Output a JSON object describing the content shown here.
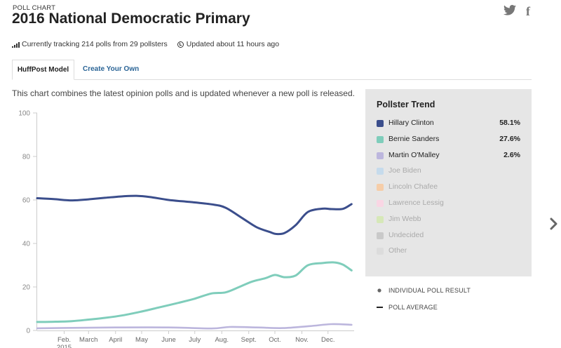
{
  "header": {
    "eyebrow": "POLL CHART",
    "title": "2016 National Democratic Primary",
    "social": [
      {
        "icon": "twitter-icon",
        "glyph": "🐦"
      },
      {
        "icon": "facebook-icon",
        "glyph": "f"
      }
    ]
  },
  "meta": {
    "tracking": "Currently tracking 214 polls from 29 pollsters",
    "updated": "Updated about 11 hours ago"
  },
  "tabs": [
    {
      "label": "HuffPost Model",
      "active": true
    },
    {
      "label": "Create Your Own",
      "active": false
    }
  ],
  "description": "This chart combines the latest opinion polls and is updated whenever a new poll is released.",
  "panel": {
    "title": "Pollster Trend",
    "rows": [
      {
        "name": "Hillary Clinton",
        "value": "58.1%",
        "color": "#3b4e8c",
        "active": true
      },
      {
        "name": "Bernie Sanders",
        "value": "27.6%",
        "color": "#7fcdbb",
        "active": true
      },
      {
        "name": "Martin O'Malley",
        "value": "2.6%",
        "color": "#bcb6dd",
        "active": true
      },
      {
        "name": "Joe Biden",
        "value": "",
        "color": "#c6dbec",
        "active": false
      },
      {
        "name": "Lincoln Chafee",
        "value": "",
        "color": "#f6cda8",
        "active": false
      },
      {
        "name": "Lawrence Lessig",
        "value": "",
        "color": "#f9d6e4",
        "active": false
      },
      {
        "name": "Jim Webb",
        "value": "",
        "color": "#d6e8b8",
        "active": false
      },
      {
        "name": "Undecided",
        "value": "",
        "color": "#c9c9c9",
        "active": false
      },
      {
        "name": "Other",
        "value": "",
        "color": "#dcdcdc",
        "active": false
      }
    ]
  },
  "legend": {
    "individual": "INDIVIDUAL POLL RESULT",
    "average": "POLL AVERAGE"
  },
  "chart_data": {
    "type": "line",
    "title": "",
    "xlabel": "",
    "ylabel": "",
    "ylim": [
      0,
      100
    ],
    "yticks": [
      0,
      20,
      40,
      60,
      80,
      100
    ],
    "grid": false,
    "xticks": [
      "Feb.",
      "March",
      "April",
      "May",
      "June",
      "July",
      "Aug.",
      "Sept.",
      "Oct.",
      "Nov.",
      "Dec."
    ],
    "xtick_sub": {
      "Feb.": "2015"
    },
    "series": [
      {
        "name": "Hillary Clinton",
        "color": "#3b4e8c",
        "x": [
          "2015-01-01",
          "2015-01-20",
          "2015-02-10",
          "2015-03-01",
          "2015-03-20",
          "2015-04-10",
          "2015-04-25",
          "2015-05-10",
          "2015-06-01",
          "2015-06-25",
          "2015-07-20",
          "2015-08-05",
          "2015-08-25",
          "2015-09-10",
          "2015-09-25",
          "2015-10-02",
          "2015-10-12",
          "2015-10-25",
          "2015-11-08",
          "2015-11-25",
          "2015-12-05",
          "2015-12-18",
          "2015-12-28"
        ],
        "values": [
          60.8,
          60.4,
          59.8,
          60.3,
          61.0,
          61.7,
          61.9,
          61.4,
          60.0,
          59.1,
          58.0,
          56.5,
          51.5,
          47.5,
          45.3,
          44.4,
          44.8,
          48.5,
          54.5,
          56.0,
          55.8,
          55.9,
          58.1
        ]
      },
      {
        "name": "Bernie Sanders",
        "color": "#7fcdbb",
        "x": [
          "2015-01-01",
          "2015-01-20",
          "2015-02-10",
          "2015-03-01",
          "2015-03-20",
          "2015-04-10",
          "2015-05-01",
          "2015-05-20",
          "2015-06-10",
          "2015-06-30",
          "2015-07-20",
          "2015-08-05",
          "2015-08-20",
          "2015-09-05",
          "2015-09-20",
          "2015-10-01",
          "2015-10-12",
          "2015-10-25",
          "2015-11-08",
          "2015-11-25",
          "2015-12-08",
          "2015-12-18",
          "2015-12-28"
        ],
        "values": [
          3.9,
          4.0,
          4.3,
          5.0,
          5.8,
          7.0,
          8.7,
          10.5,
          12.5,
          14.5,
          17.0,
          17.5,
          19.8,
          22.5,
          24.0,
          25.5,
          24.5,
          25.3,
          30.0,
          31.0,
          31.3,
          30.3,
          27.6
        ]
      },
      {
        "name": "Martin O'Malley",
        "color": "#bcb6dd",
        "x": [
          "2015-01-01",
          "2015-02-10",
          "2015-04-01",
          "2015-06-01",
          "2015-07-20",
          "2015-08-10",
          "2015-09-10",
          "2015-10-10",
          "2015-11-10",
          "2015-12-05",
          "2015-12-28"
        ],
        "values": [
          1.0,
          1.2,
          1.4,
          1.4,
          0.9,
          1.6,
          1.4,
          1.1,
          2.0,
          2.9,
          2.6
        ]
      }
    ]
  }
}
